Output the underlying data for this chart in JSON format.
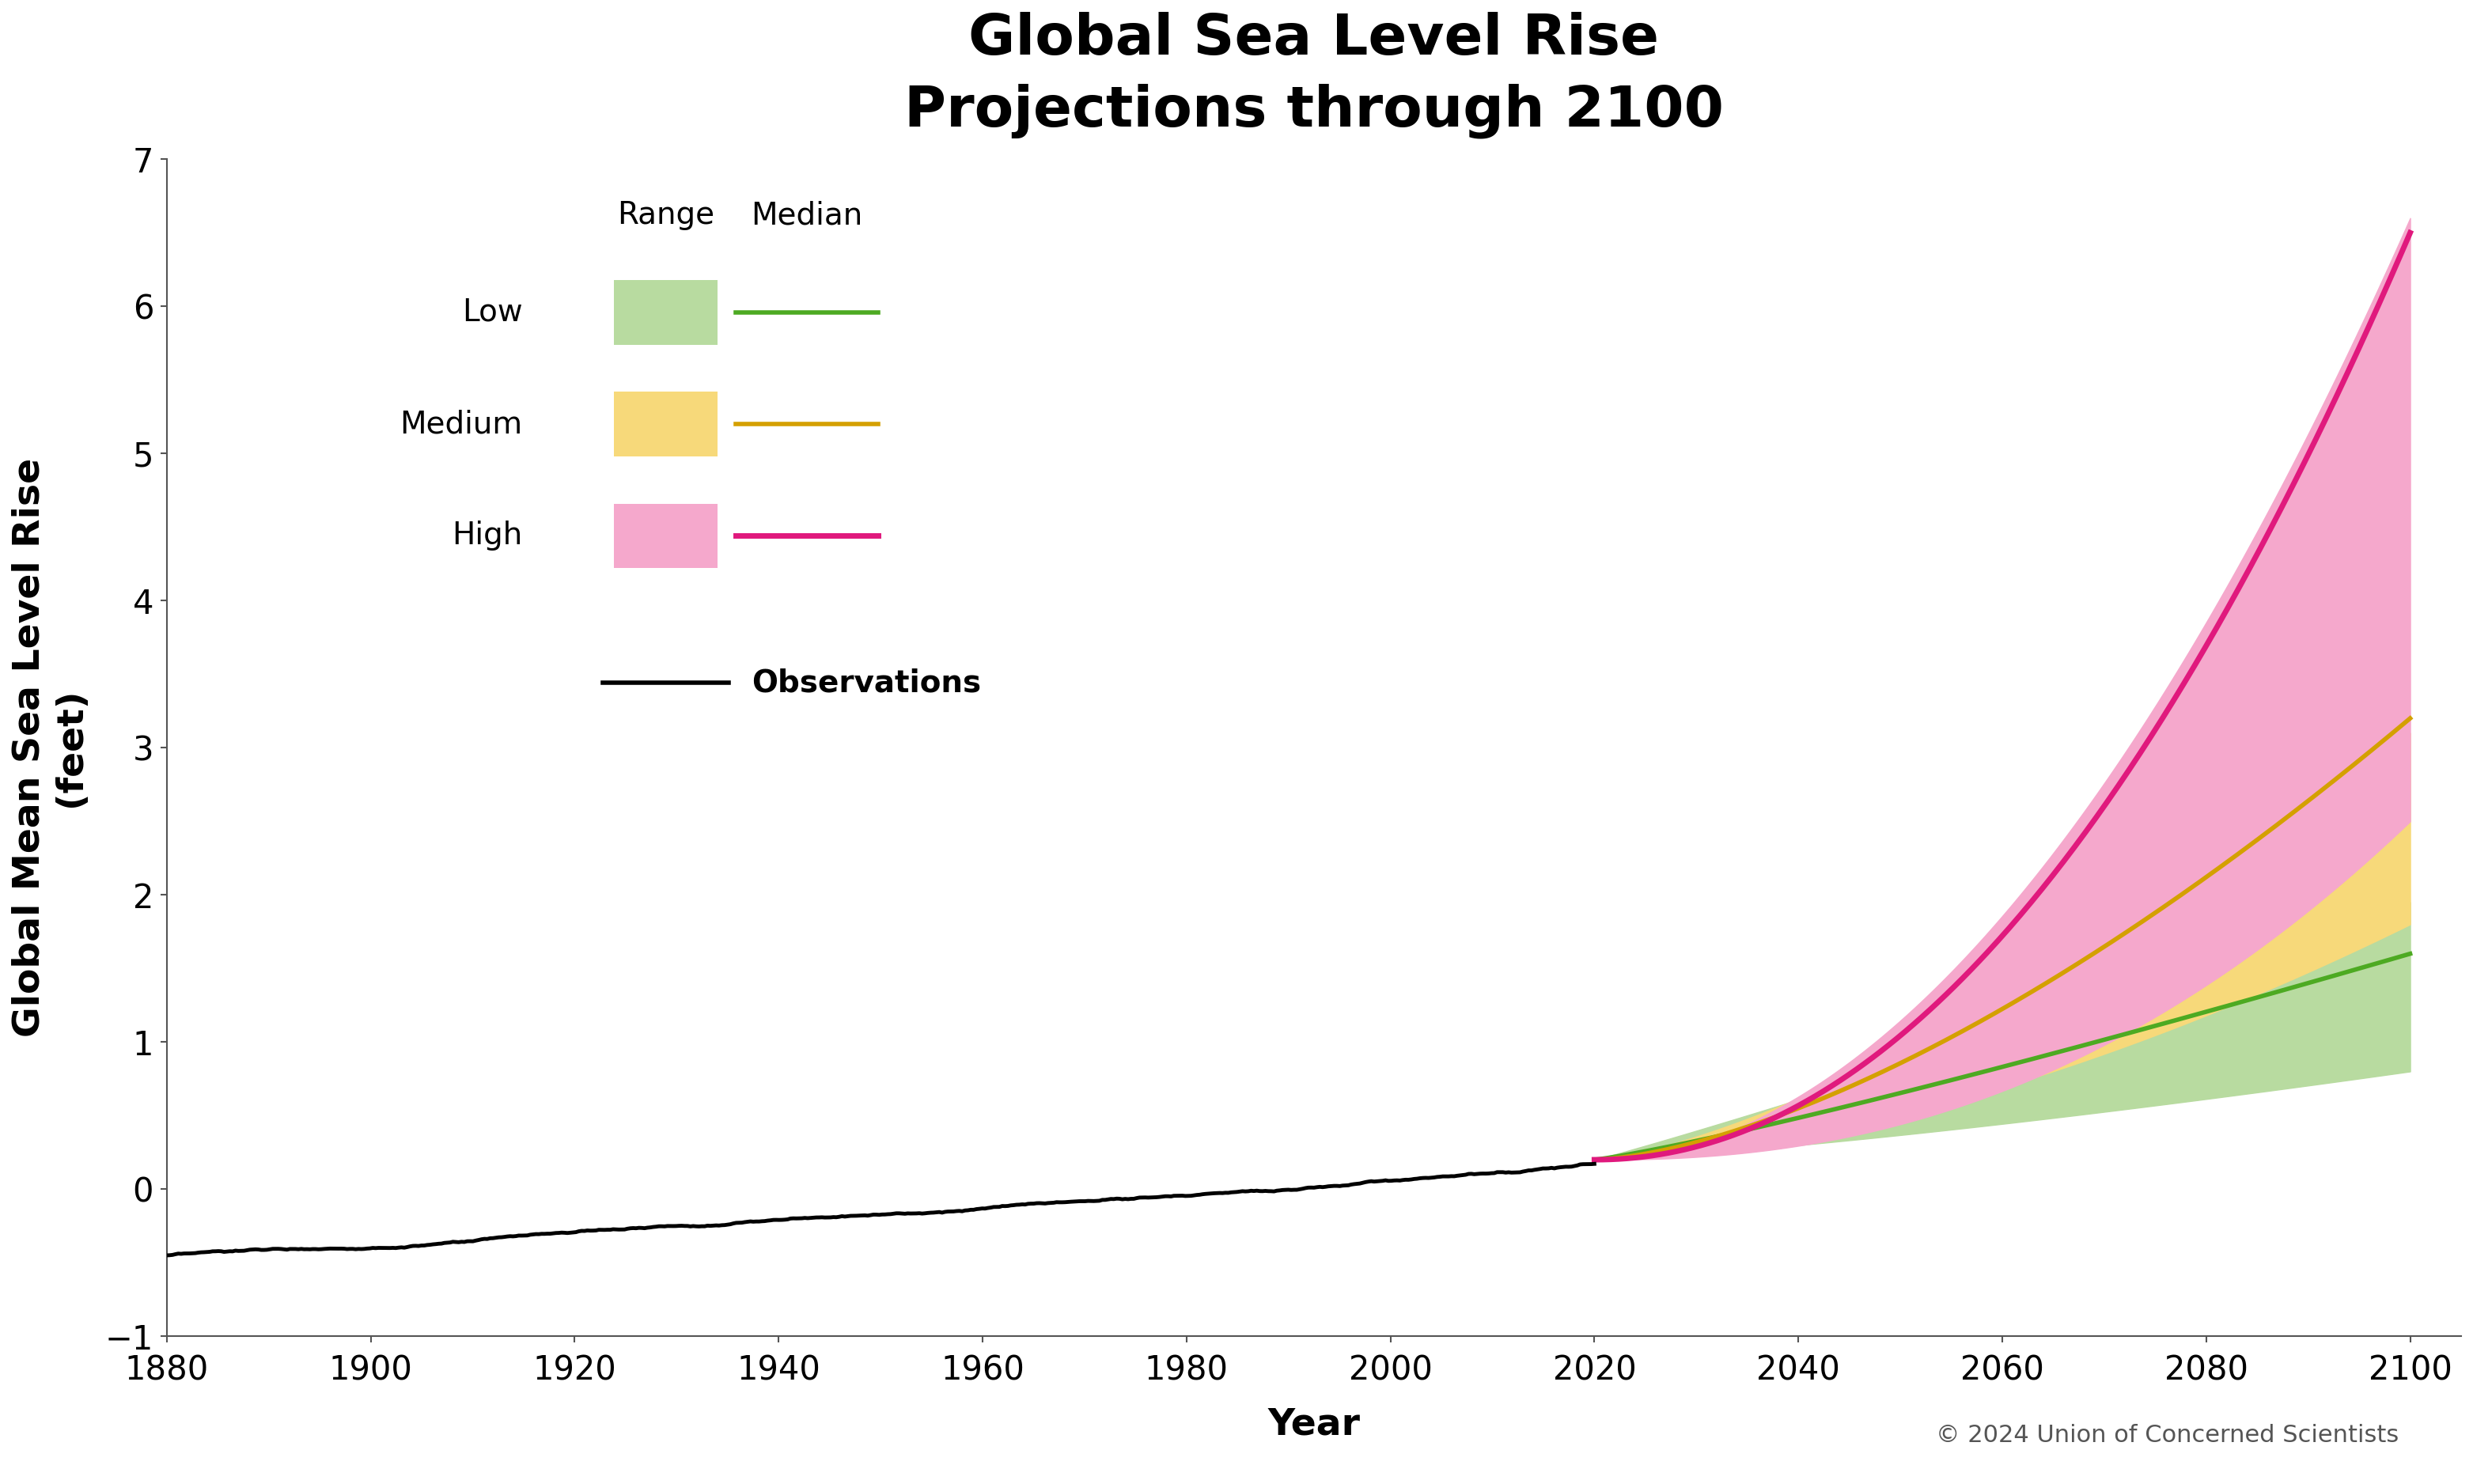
{
  "title": "Global Sea Level Rise\nProjections through 2100",
  "xlabel": "Year",
  "ylabel": "Global Mean Sea Level Rise\n(feet)",
  "xlim": [
    1880,
    2105
  ],
  "ylim": [
    -1,
    7
  ],
  "yticks": [
    -1,
    0,
    1,
    2,
    3,
    4,
    5,
    6,
    7
  ],
  "xticks": [
    1880,
    1900,
    1920,
    1940,
    1960,
    1980,
    2000,
    2020,
    2040,
    2060,
    2080,
    2100
  ],
  "obs_color": "#000000",
  "low_fill_color": "#b8dba0",
  "low_line_color": "#4daa22",
  "medium_fill_color": "#f7d97a",
  "medium_line_color": "#d4a000",
  "high_fill_color": "#f5a8cc",
  "high_line_color": "#e0197d",
  "background_color": "#ffffff",
  "copyright_text": "© 2024 Union of Concerned Scientists",
  "title_fontsize": 52,
  "axis_label_fontsize": 34,
  "tick_fontsize": 30,
  "legend_fontsize": 28,
  "copyright_fontsize": 22
}
